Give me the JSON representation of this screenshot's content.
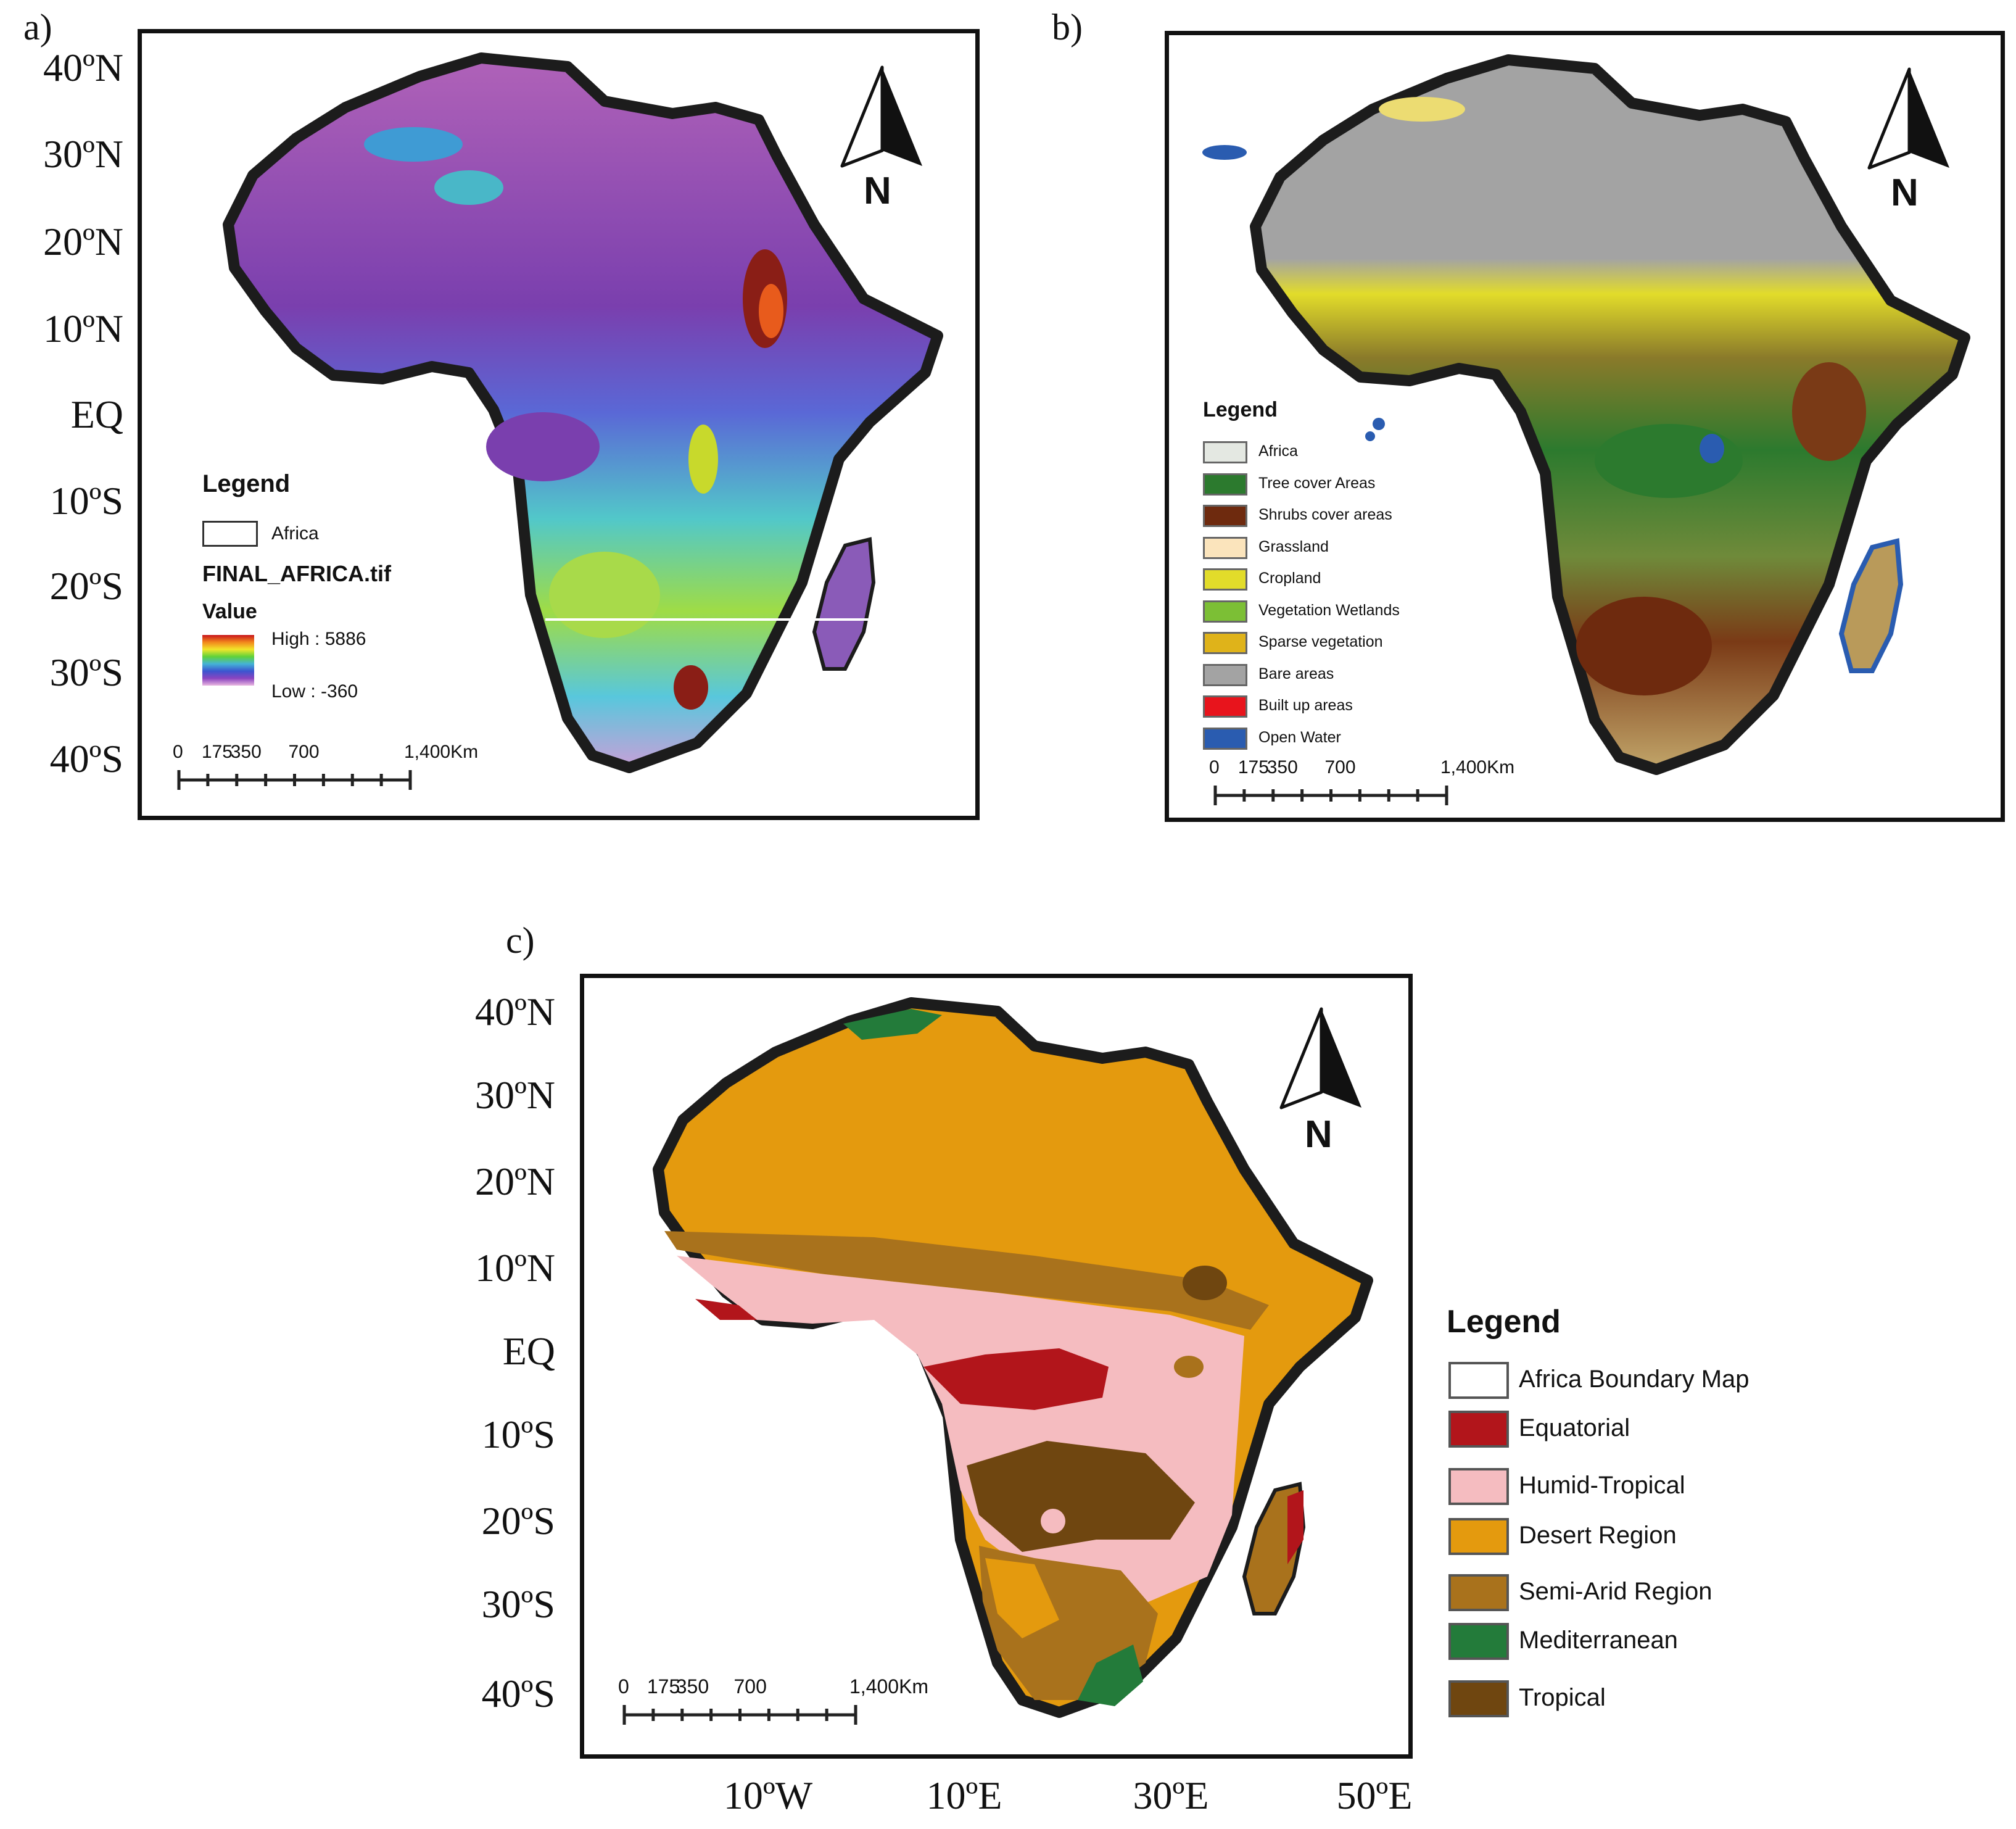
{
  "panel_a": {
    "letter": "a)",
    "lat_labels": [
      "40ºN",
      "30ºN",
      "20ºN",
      "10ºN",
      "EQ",
      "10ºS",
      "20ºS",
      "30ºS",
      "40ºS"
    ],
    "north": "N",
    "legend": {
      "title": "Legend",
      "boundary_label": "Africa",
      "raster_name": "FINAL_AFRICA.tif",
      "value_label": "Value",
      "high": "High : 5886",
      "low": "Low : -360"
    },
    "scale": [
      "0",
      "175",
      "350",
      "700",
      "1,400Km"
    ]
  },
  "panel_b": {
    "letter": "b)",
    "north": "N",
    "legend": {
      "title": "Legend",
      "items": [
        {
          "label": "Africa",
          "color": "#e4e8e2"
        },
        {
          "label": "Tree cover Areas",
          "color": "#2c7a2e"
        },
        {
          "label": "Shrubs cover areas",
          "color": "#6e2a0e"
        },
        {
          "label": "Grassland",
          "color": "#fbe4bc"
        },
        {
          "label": "Cropland",
          "color": "#e2dc2a"
        },
        {
          "label": "Vegetation Wetlands",
          "color": "#7cbf35"
        },
        {
          "label": "Sparse vegetation",
          "color": "#dfb31a"
        },
        {
          "label": "Bare areas",
          "color": "#a3a3a3"
        },
        {
          "label": "Built up areas",
          "color": "#e8141c"
        },
        {
          "label": "Open Water",
          "color": "#2a5cb0"
        }
      ]
    },
    "scale": [
      "0",
      "175",
      "350",
      "700",
      "1,400Km"
    ]
  },
  "panel_c": {
    "letter": "c)",
    "lat_labels": [
      "40ºN",
      "30ºN",
      "20ºN",
      "10ºN",
      "EQ",
      "10ºS",
      "20ºS",
      "30ºS",
      "40ºS"
    ],
    "lon_labels": [
      "10ºW",
      "10ºE",
      "30ºE",
      "50ºE"
    ],
    "north": "N",
    "legend": {
      "title": "Legend",
      "items": [
        {
          "label": "Africa Boundary Map",
          "color": "#ffffff"
        },
        {
          "label": "Equatorial",
          "color": "#b2151b"
        },
        {
          "label": "Humid-Tropical",
          "color": "#f5bcc0"
        },
        {
          "label": "Desert Region",
          "color": "#e49a0e"
        },
        {
          "label": "Semi-Arid Region",
          "color": "#a9721c"
        },
        {
          "label": "Mediterranean",
          "color": "#237b3a"
        },
        {
          "label": "Tropical",
          "color": "#6f4610"
        }
      ]
    },
    "scale": [
      "0",
      "175",
      "350",
      "700",
      "1,400Km"
    ]
  }
}
